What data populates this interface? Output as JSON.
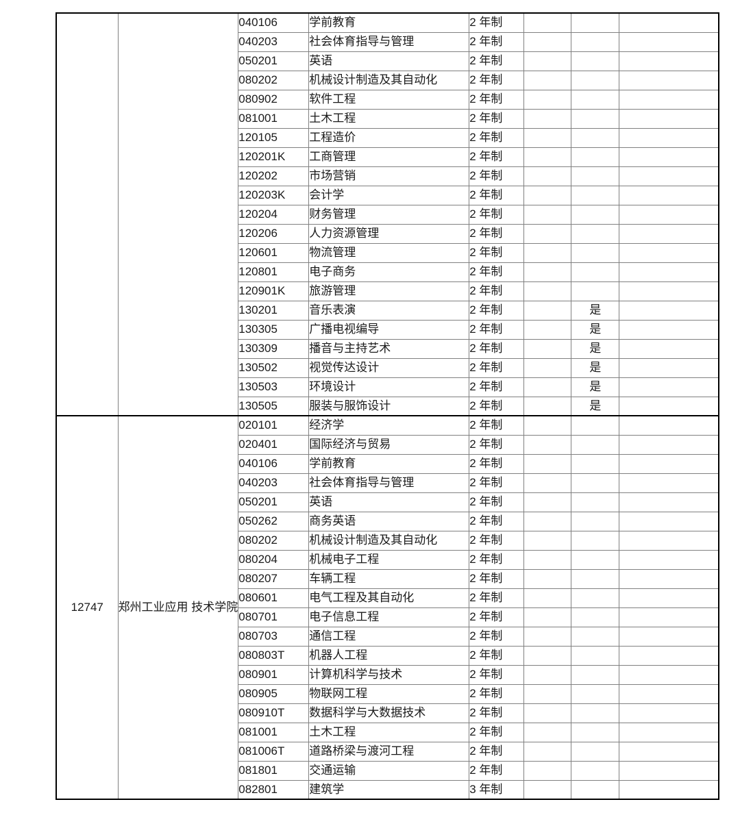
{
  "colors": {
    "page_background": "#ffffff",
    "text": "#1a1a1a",
    "outer_border": "#000000",
    "inner_border": "#808080"
  },
  "table": {
    "groups": [
      {
        "school_code": "",
        "school_name_lines": [],
        "rows": [
          {
            "major_code": "040106",
            "major_name": "学前教育",
            "duration": "2 年制",
            "col6": "",
            "flag": "",
            "col8": ""
          },
          {
            "major_code": "040203",
            "major_name": "社会体育指导与管理",
            "duration": "2 年制",
            "col6": "",
            "flag": "",
            "col8": ""
          },
          {
            "major_code": "050201",
            "major_name": "英语",
            "duration": "2 年制",
            "col6": "",
            "flag": "",
            "col8": ""
          },
          {
            "major_code": "080202",
            "major_name": "机械设计制造及其自动化",
            "duration": "2 年制",
            "col6": "",
            "flag": "",
            "col8": ""
          },
          {
            "major_code": "080902",
            "major_name": "软件工程",
            "duration": "2 年制",
            "col6": "",
            "flag": "",
            "col8": ""
          },
          {
            "major_code": "081001",
            "major_name": "土木工程",
            "duration": "2 年制",
            "col6": "",
            "flag": "",
            "col8": ""
          },
          {
            "major_code": "120105",
            "major_name": "工程造价",
            "duration": "2 年制",
            "col6": "",
            "flag": "",
            "col8": ""
          },
          {
            "major_code": "120201K",
            "major_name": "工商管理",
            "duration": "2 年制",
            "col6": "",
            "flag": "",
            "col8": ""
          },
          {
            "major_code": "120202",
            "major_name": "市场营销",
            "duration": "2 年制",
            "col6": "",
            "flag": "",
            "col8": ""
          },
          {
            "major_code": "120203K",
            "major_name": "会计学",
            "duration": "2 年制",
            "col6": "",
            "flag": "",
            "col8": ""
          },
          {
            "major_code": "120204",
            "major_name": "财务管理",
            "duration": "2 年制",
            "col6": "",
            "flag": "",
            "col8": ""
          },
          {
            "major_code": "120206",
            "major_name": "人力资源管理",
            "duration": "2 年制",
            "col6": "",
            "flag": "",
            "col8": ""
          },
          {
            "major_code": "120601",
            "major_name": "物流管理",
            "duration": "2 年制",
            "col6": "",
            "flag": "",
            "col8": ""
          },
          {
            "major_code": "120801",
            "major_name": "电子商务",
            "duration": "2 年制",
            "col6": "",
            "flag": "",
            "col8": ""
          },
          {
            "major_code": "120901K",
            "major_name": "旅游管理",
            "duration": "2 年制",
            "col6": "",
            "flag": "",
            "col8": ""
          },
          {
            "major_code": "130201",
            "major_name": "音乐表演",
            "duration": "2 年制",
            "col6": "",
            "flag": "是",
            "col8": ""
          },
          {
            "major_code": "130305",
            "major_name": "广播电视编导",
            "duration": "2 年制",
            "col6": "",
            "flag": "是",
            "col8": ""
          },
          {
            "major_code": "130309",
            "major_name": "播音与主持艺术",
            "duration": "2 年制",
            "col6": "",
            "flag": "是",
            "col8": ""
          },
          {
            "major_code": "130502",
            "major_name": "视觉传达设计",
            "duration": "2 年制",
            "col6": "",
            "flag": "是",
            "col8": ""
          },
          {
            "major_code": "130503",
            "major_name": "环境设计",
            "duration": "2 年制",
            "col6": "",
            "flag": "是",
            "col8": ""
          },
          {
            "major_code": "130505",
            "major_name": "服装与服饰设计",
            "duration": "2 年制",
            "col6": "",
            "flag": "是",
            "col8": ""
          }
        ]
      },
      {
        "school_code": "12747",
        "school_name_lines": [
          "郑州工业应用",
          "技术学院"
        ],
        "rows": [
          {
            "major_code": "020101",
            "major_name": "经济学",
            "duration": "2 年制",
            "col6": "",
            "flag": "",
            "col8": ""
          },
          {
            "major_code": "020401",
            "major_name": "国际经济与贸易",
            "duration": "2 年制",
            "col6": "",
            "flag": "",
            "col8": ""
          },
          {
            "major_code": "040106",
            "major_name": "学前教育",
            "duration": "2 年制",
            "col6": "",
            "flag": "",
            "col8": ""
          },
          {
            "major_code": "040203",
            "major_name": "社会体育指导与管理",
            "duration": "2 年制",
            "col6": "",
            "flag": "",
            "col8": ""
          },
          {
            "major_code": "050201",
            "major_name": "英语",
            "duration": "2 年制",
            "col6": "",
            "flag": "",
            "col8": ""
          },
          {
            "major_code": "050262",
            "major_name": "商务英语",
            "duration": "2 年制",
            "col6": "",
            "flag": "",
            "col8": ""
          },
          {
            "major_code": "080202",
            "major_name": "机械设计制造及其自动化",
            "duration": "2 年制",
            "col6": "",
            "flag": "",
            "col8": ""
          },
          {
            "major_code": "080204",
            "major_name": "机械电子工程",
            "duration": "2 年制",
            "col6": "",
            "flag": "",
            "col8": ""
          },
          {
            "major_code": "080207",
            "major_name": "车辆工程",
            "duration": "2 年制",
            "col6": "",
            "flag": "",
            "col8": ""
          },
          {
            "major_code": "080601",
            "major_name": "电气工程及其自动化",
            "duration": "2 年制",
            "col6": "",
            "flag": "",
            "col8": ""
          },
          {
            "major_code": "080701",
            "major_name": "电子信息工程",
            "duration": "2 年制",
            "col6": "",
            "flag": "",
            "col8": ""
          },
          {
            "major_code": "080703",
            "major_name": "通信工程",
            "duration": "2 年制",
            "col6": "",
            "flag": "",
            "col8": ""
          },
          {
            "major_code": "080803T",
            "major_name": "机器人工程",
            "duration": "2 年制",
            "col6": "",
            "flag": "",
            "col8": ""
          },
          {
            "major_code": "080901",
            "major_name": "计算机科学与技术",
            "duration": "2 年制",
            "col6": "",
            "flag": "",
            "col8": ""
          },
          {
            "major_code": "080905",
            "major_name": "物联网工程",
            "duration": "2 年制",
            "col6": "",
            "flag": "",
            "col8": ""
          },
          {
            "major_code": "080910T",
            "major_name": "数据科学与大数据技术",
            "duration": "2 年制",
            "col6": "",
            "flag": "",
            "col8": ""
          },
          {
            "major_code": "081001",
            "major_name": "土木工程",
            "duration": "2 年制",
            "col6": "",
            "flag": "",
            "col8": ""
          },
          {
            "major_code": "081006T",
            "major_name": "道路桥梁与渡河工程",
            "duration": "2 年制",
            "col6": "",
            "flag": "",
            "col8": ""
          },
          {
            "major_code": "081801",
            "major_name": "交通运输",
            "duration": "2 年制",
            "col6": "",
            "flag": "",
            "col8": ""
          },
          {
            "major_code": "082801",
            "major_name": "建筑学",
            "duration": "3 年制",
            "col6": "",
            "flag": "",
            "col8": ""
          }
        ]
      }
    ]
  }
}
